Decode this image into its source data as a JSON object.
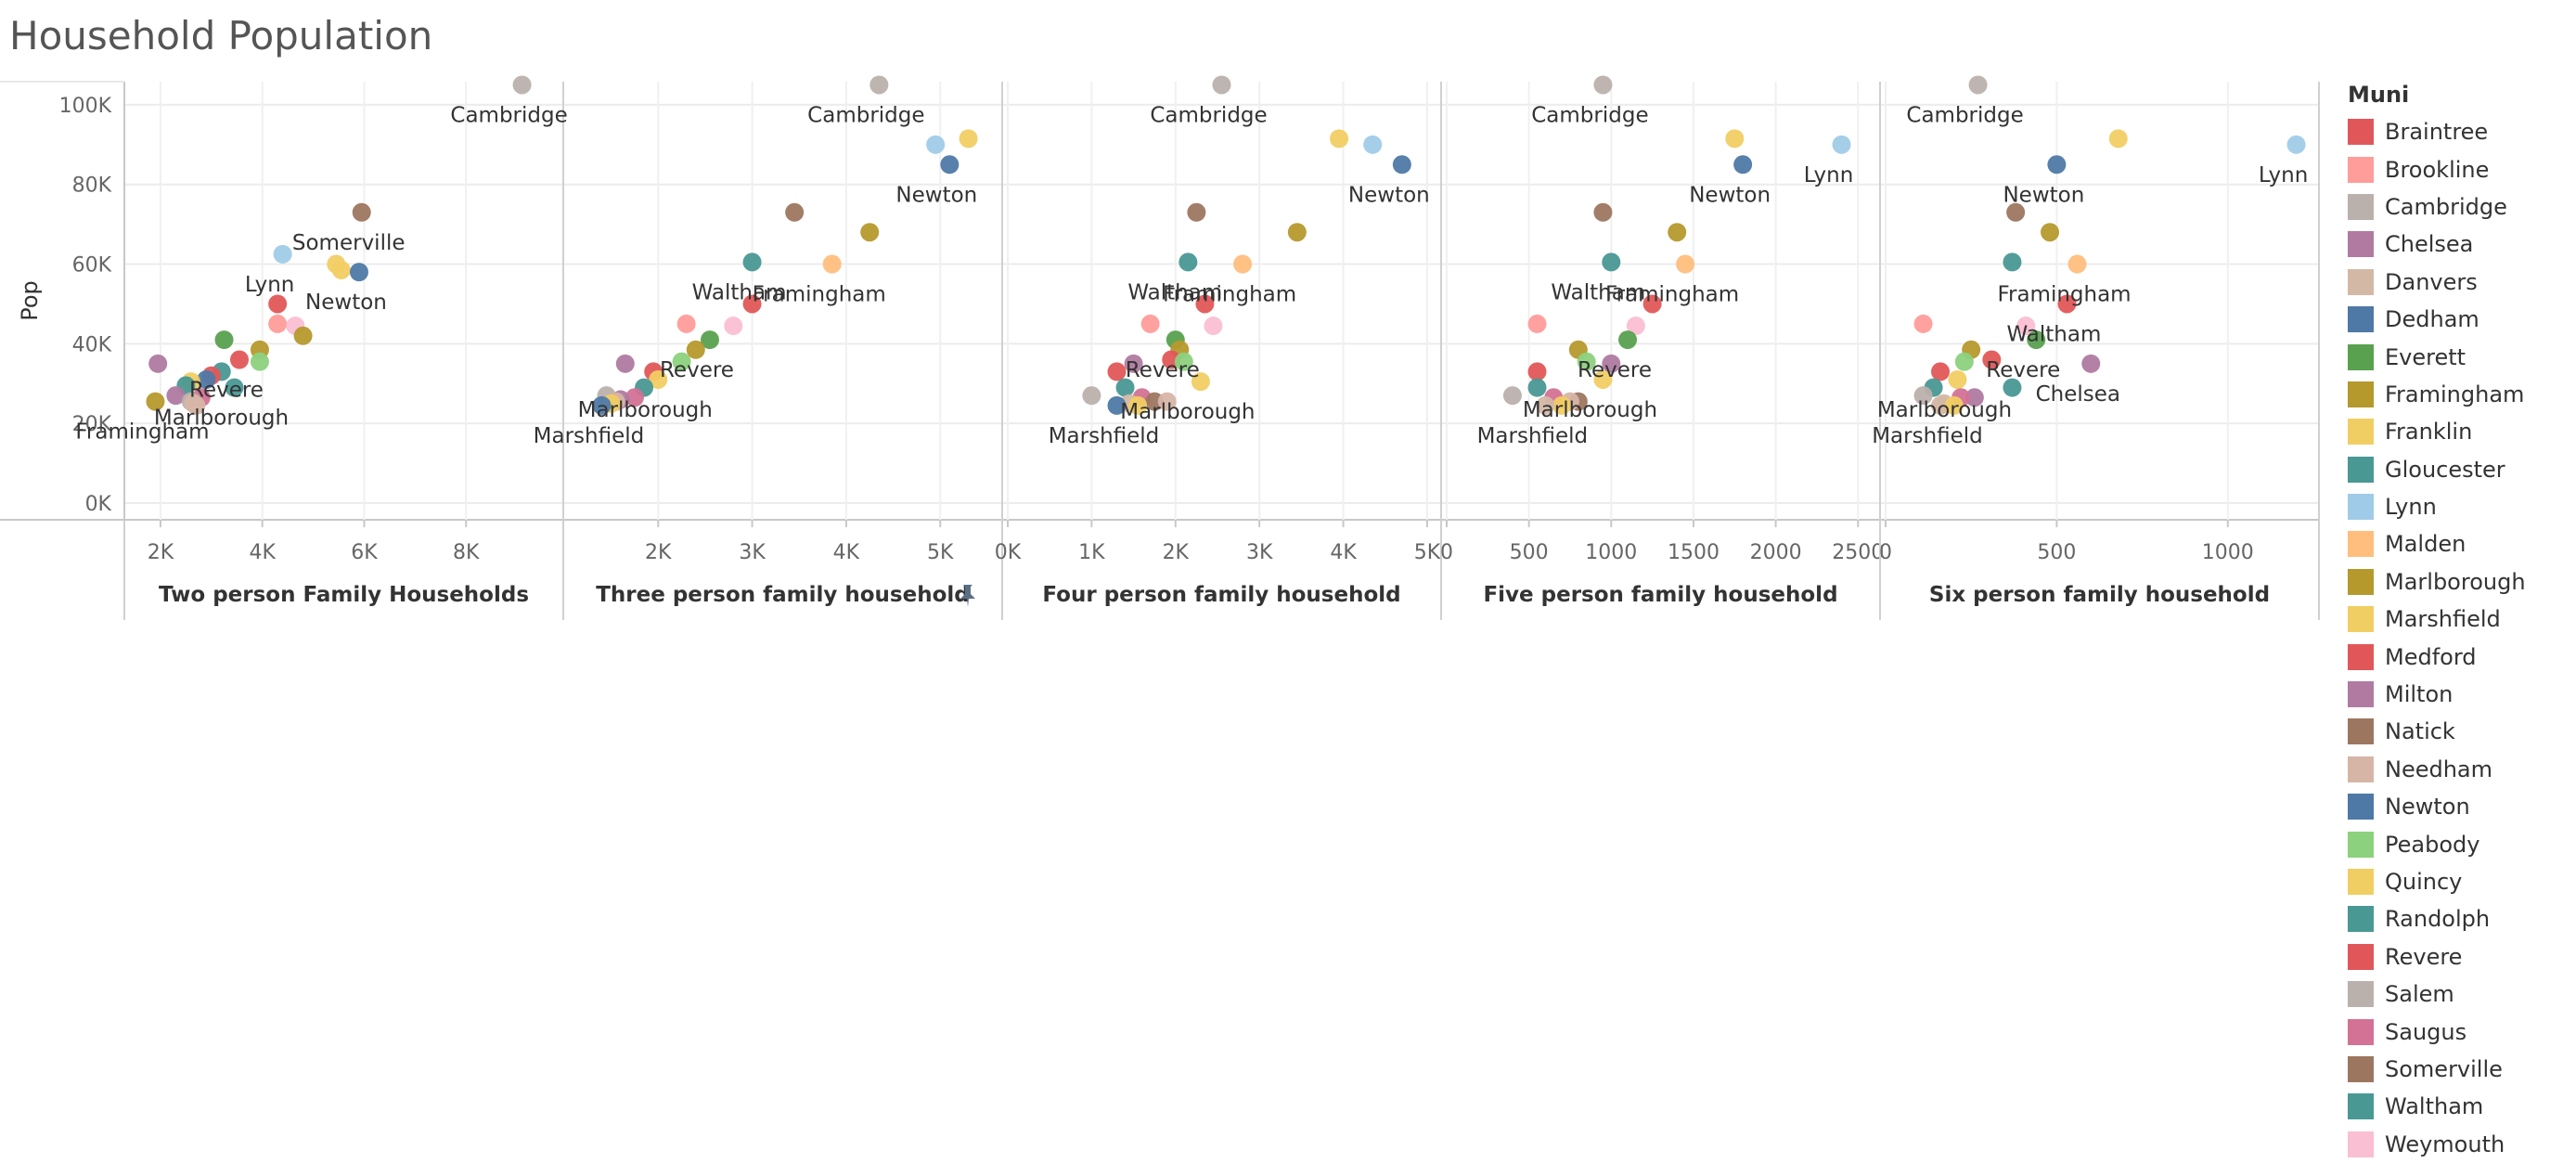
{
  "title": "Household Population",
  "chart_data": {
    "type": "scatter",
    "title": "Household Population",
    "ylabel": "Pop",
    "ylim": [
      0,
      110000
    ],
    "yticks": [
      0,
      20000,
      40000,
      60000,
      80000,
      100000
    ],
    "ytick_labels": [
      "0K",
      "20K",
      "40K",
      "60K",
      "80K",
      "100K"
    ],
    "grid": true,
    "legend": {
      "title": "Muni",
      "position": "right"
    },
    "colors": {
      "Braintree": "#e15759",
      "Brookline": "#ff9d9a",
      "Cambridge": "#bab0ac",
      "Chelsea": "#b07aa1",
      "Danvers": "#d4b8a6",
      "Dedham": "#4e79a7",
      "Everett": "#59a14f",
      "Framingham": "#b6992d",
      "Franklin": "#f1ce63",
      "Gloucester": "#499894",
      "Lynn": "#a0cbe8",
      "Malden": "#ffbe7d",
      "Marlborough": "#b6992d",
      "Marshfield": "#f1ce63",
      "Medford": "#e15759",
      "Milton": "#b07aa1",
      "Natick": "#9d7660",
      "Needham": "#d7b5a6",
      "Newton": "#4e79a7",
      "Peabody": "#8cd17d",
      "Quincy": "#f1ce63",
      "Randolph": "#499894",
      "Revere": "#e15759",
      "Salem": "#bab0ac",
      "Saugus": "#d37295",
      "Somerville": "#9d7660",
      "Waltham": "#499894",
      "Weymouth": "#fabfd2"
    },
    "munis": [
      "Braintree",
      "Brookline",
      "Cambridge",
      "Chelsea",
      "Danvers",
      "Dedham",
      "Everett",
      "Framingham",
      "Franklin",
      "Gloucester",
      "Lynn",
      "Malden",
      "Marlborough",
      "Marshfield",
      "Medford",
      "Milton",
      "Natick",
      "Needham",
      "Newton",
      "Peabody",
      "Quincy",
      "Randolph",
      "Revere",
      "Salem",
      "Saugus",
      "Somerville",
      "Waltham",
      "Weymouth"
    ],
    "panels": [
      {
        "xlabel": "Two person Family Households",
        "xlim": [
          1400,
          9800
        ],
        "xticks": [
          2000,
          4000,
          6000,
          8000
        ],
        "xtick_labels": [
          "2K",
          "4K",
          "6K",
          "8K"
        ],
        "points": [
          {
            "muni": "Cambridge",
            "x": 9100,
            "y": 105000,
            "label": "Cambridge"
          },
          {
            "muni": "Somerville",
            "x": 5950,
            "y": 73000,
            "label": "Somerville"
          },
          {
            "muni": "Lynn",
            "x": 4400,
            "y": 62500,
            "label": "Lynn"
          },
          {
            "muni": "Quincy",
            "x": 5450,
            "y": 60000
          },
          {
            "muni": "Franklin",
            "x": 5550,
            "y": 58500
          },
          {
            "muni": "Newton",
            "x": 5900,
            "y": 58000,
            "label": "Newton"
          },
          {
            "muni": "Braintree",
            "x": 4300,
            "y": 50000
          },
          {
            "muni": "Brookline",
            "x": 4300,
            "y": 45000
          },
          {
            "muni": "Weymouth",
            "x": 4650,
            "y": 44500
          },
          {
            "muni": "Framingham",
            "x": 4800,
            "y": 42000
          },
          {
            "muni": "Everett",
            "x": 3250,
            "y": 41000
          },
          {
            "muni": "Revere",
            "x": 3550,
            "y": 36000,
            "label": "Revere"
          },
          {
            "muni": "Marlborough",
            "x": 3950,
            "y": 38500
          },
          {
            "muni": "Peabody",
            "x": 3950,
            "y": 35500
          },
          {
            "muni": "Milton",
            "x": 1950,
            "y": 35000
          },
          {
            "muni": "Gloucester",
            "x": 3200,
            "y": 33000
          },
          {
            "muni": "Medford",
            "x": 3000,
            "y": 32000
          },
          {
            "muni": "Dedham",
            "x": 2900,
            "y": 31000
          },
          {
            "muni": "Marshfield",
            "x": 2600,
            "y": 30500
          },
          {
            "muni": "Waltham",
            "x": 2500,
            "y": 29500
          },
          {
            "muni": "Randolph",
            "x": 3450,
            "y": 29000,
            "label": "Marlborough"
          },
          {
            "muni": "Chelsea",
            "x": 2300,
            "y": 27000
          },
          {
            "muni": "Saugus",
            "x": 2800,
            "y": 26500
          },
          {
            "muni": "Framingham",
            "x": 1900,
            "y": 25500,
            "label": "Framingham"
          },
          {
            "muni": "Salem",
            "x": 2600,
            "y": 25500
          },
          {
            "muni": "Danvers",
            "x": 2650,
            "y": 25000
          },
          {
            "muni": "Needham",
            "x": 2700,
            "y": 24500
          }
        ]
      },
      {
        "xlabel": "Three person family household",
        "xlim": [
          1050,
          5600
        ],
        "xticks": [
          2000,
          3000,
          4000,
          5000
        ],
        "xtick_labels": [
          "2K",
          "3K",
          "4K",
          "5K"
        ],
        "points": [
          {
            "muni": "Cambridge",
            "x": 4350,
            "y": 105000,
            "label": "Cambridge"
          },
          {
            "muni": "Lynn",
            "x": 4950,
            "y": 90000
          },
          {
            "muni": "Franklin",
            "x": 5300,
            "y": 91500
          },
          {
            "muni": "Newton",
            "x": 5100,
            "y": 85000,
            "label": "Newton"
          },
          {
            "muni": "Somerville",
            "x": 3450,
            "y": 73000
          },
          {
            "muni": "Marlborough",
            "x": 4250,
            "y": 68000
          },
          {
            "muni": "Waltham",
            "x": 3000,
            "y": 60500,
            "label": "Waltham"
          },
          {
            "muni": "Malden",
            "x": 3850,
            "y": 60000,
            "label": "Framingham"
          },
          {
            "muni": "Revere",
            "x": 3000,
            "y": 50000
          },
          {
            "muni": "Brookline",
            "x": 2300,
            "y": 45000
          },
          {
            "muni": "Weymouth",
            "x": 2800,
            "y": 44500
          },
          {
            "muni": "Everett",
            "x": 2550,
            "y": 41000,
            "label": "Revere"
          },
          {
            "muni": "Framingham",
            "x": 2400,
            "y": 38500
          },
          {
            "muni": "Peabody",
            "x": 2250,
            "y": 35500
          },
          {
            "muni": "Milton",
            "x": 1650,
            "y": 35000
          },
          {
            "muni": "Medford",
            "x": 1950,
            "y": 33000
          },
          {
            "muni": "Marshfield",
            "x": 2000,
            "y": 31000,
            "label": "Marlborough"
          },
          {
            "muni": "Gloucester",
            "x": 1850,
            "y": 29000
          },
          {
            "muni": "Salem",
            "x": 1450,
            "y": 27000
          },
          {
            "muni": "Saugus",
            "x": 1750,
            "y": 26500
          },
          {
            "muni": "Chelsea",
            "x": 1600,
            "y": 26000
          },
          {
            "muni": "Needham",
            "x": 1550,
            "y": 25500
          },
          {
            "muni": "Franklin",
            "x": 1500,
            "y": 25000
          },
          {
            "muni": "Dedham",
            "x": 1400,
            "y": 24500,
            "label": "Marshfield"
          }
        ]
      },
      {
        "xlabel": "Four person family household",
        "xlim": [
          0,
          5100
        ],
        "xticks": [
          0,
          1000,
          2000,
          3000,
          4000,
          5000
        ],
        "xtick_labels": [
          "0K",
          "1K",
          "2K",
          "3K",
          "4K",
          "5K"
        ],
        "points": [
          {
            "muni": "Cambridge",
            "x": 2550,
            "y": 105000,
            "label": "Cambridge"
          },
          {
            "muni": "Franklin",
            "x": 3950,
            "y": 91500
          },
          {
            "muni": "Lynn",
            "x": 4350,
            "y": 90000
          },
          {
            "muni": "Newton",
            "x": 4700,
            "y": 85000,
            "label": "Newton"
          },
          {
            "muni": "Somerville",
            "x": 2250,
            "y": 73000
          },
          {
            "muni": "Marlborough",
            "x": 3450,
            "y": 68000
          },
          {
            "muni": "Waltham",
            "x": 2150,
            "y": 60500,
            "label": "Waltham"
          },
          {
            "muni": "Malden",
            "x": 2800,
            "y": 60000,
            "label": "Framingham"
          },
          {
            "muni": "Revere",
            "x": 2350,
            "y": 50000
          },
          {
            "muni": "Brookline",
            "x": 1700,
            "y": 45000
          },
          {
            "muni": "Weymouth",
            "x": 2450,
            "y": 44500
          },
          {
            "muni": "Everett",
            "x": 2000,
            "y": 41000,
            "label": "Revere"
          },
          {
            "muni": "Framingham",
            "x": 2050,
            "y": 38500
          },
          {
            "muni": "Medford",
            "x": 1950,
            "y": 36000
          },
          {
            "muni": "Peabody",
            "x": 2100,
            "y": 35500
          },
          {
            "muni": "Milton",
            "x": 1500,
            "y": 35000
          },
          {
            "muni": "Braintree",
            "x": 1300,
            "y": 33000
          },
          {
            "muni": "Franklin",
            "x": 2300,
            "y": 30500,
            "label": "Marlborough"
          },
          {
            "muni": "Gloucester",
            "x": 1400,
            "y": 29000
          },
          {
            "muni": "Salem",
            "x": 1000,
            "y": 27000
          },
          {
            "muni": "Saugus",
            "x": 1600,
            "y": 26500
          },
          {
            "muni": "Natick",
            "x": 1750,
            "y": 25500
          },
          {
            "muni": "Needham",
            "x": 1900,
            "y": 25500
          },
          {
            "muni": "Danvers",
            "x": 1450,
            "y": 25000
          },
          {
            "muni": "Dedham",
            "x": 1300,
            "y": 24500,
            "label": "Marshfield"
          },
          {
            "muni": "Quincy",
            "x": 1550,
            "y": 24500
          }
        ]
      },
      {
        "xlabel": "Five person family household",
        "xlim": [
          0,
          2600
        ],
        "xticks": [
          0,
          500,
          1000,
          1500,
          2000,
          2500
        ],
        "xtick_labels": [
          "0",
          "500",
          "1000",
          "1500",
          "2000",
          "2500"
        ],
        "points": [
          {
            "muni": "Cambridge",
            "x": 950,
            "y": 105000,
            "label": "Cambridge"
          },
          {
            "muni": "Franklin",
            "x": 1750,
            "y": 91500
          },
          {
            "muni": "Lynn",
            "x": 2400,
            "y": 90000,
            "label": "Lynn"
          },
          {
            "muni": "Newton",
            "x": 1800,
            "y": 85000,
            "label": "Newton"
          },
          {
            "muni": "Somerville",
            "x": 950,
            "y": 73000
          },
          {
            "muni": "Marlborough",
            "x": 1400,
            "y": 68000
          },
          {
            "muni": "Waltham",
            "x": 1000,
            "y": 60500,
            "label": "Waltham"
          },
          {
            "muni": "Malden",
            "x": 1450,
            "y": 60000,
            "label": "Framingham"
          },
          {
            "muni": "Revere",
            "x": 1250,
            "y": 50000
          },
          {
            "muni": "Brookline",
            "x": 550,
            "y": 45000
          },
          {
            "muni": "Weymouth",
            "x": 1150,
            "y": 44500
          },
          {
            "muni": "Everett",
            "x": 1100,
            "y": 41000,
            "label": "Revere"
          },
          {
            "muni": "Framingham",
            "x": 800,
            "y": 38500
          },
          {
            "muni": "Peabody",
            "x": 850,
            "y": 35500
          },
          {
            "muni": "Milton",
            "x": 1000,
            "y": 35000
          },
          {
            "muni": "Medford",
            "x": 550,
            "y": 33000
          },
          {
            "muni": "Marshfield",
            "x": 950,
            "y": 31000,
            "label": "Marlborough"
          },
          {
            "muni": "Gloucester",
            "x": 550,
            "y": 29000
          },
          {
            "muni": "Salem",
            "x": 400,
            "y": 27000
          },
          {
            "muni": "Saugus",
            "x": 650,
            "y": 26500
          },
          {
            "muni": "Natick",
            "x": 800,
            "y": 25500
          },
          {
            "muni": "Needham",
            "x": 750,
            "y": 25500
          },
          {
            "muni": "Quincy",
            "x": 700,
            "y": 24500
          },
          {
            "muni": "Danvers",
            "x": 600,
            "y": 24500,
            "label": "Marshfield"
          }
        ]
      },
      {
        "xlabel": "Six person family household",
        "xlim": [
          0,
          1250
        ],
        "xticks": [
          0,
          500,
          1000
        ],
        "xtick_labels": [
          "0",
          "500",
          "1000"
        ],
        "points": [
          {
            "muni": "Cambridge",
            "x": 270,
            "y": 105000,
            "label": "Cambridge"
          },
          {
            "muni": "Franklin",
            "x": 680,
            "y": 91500
          },
          {
            "muni": "Lynn",
            "x": 1200,
            "y": 90000,
            "label": "Lynn"
          },
          {
            "muni": "Newton",
            "x": 500,
            "y": 85000,
            "label": "Newton"
          },
          {
            "muni": "Somerville",
            "x": 380,
            "y": 73000
          },
          {
            "muni": "Marlborough",
            "x": 480,
            "y": 68000
          },
          {
            "muni": "Waltham",
            "x": 370,
            "y": 60500
          },
          {
            "muni": "Malden",
            "x": 560,
            "y": 60000,
            "label": "Framingham"
          },
          {
            "muni": "Revere",
            "x": 530,
            "y": 50000,
            "label": "Waltham"
          },
          {
            "muni": "Brookline",
            "x": 110,
            "y": 45000
          },
          {
            "muni": "Weymouth",
            "x": 410,
            "y": 44500
          },
          {
            "muni": "Everett",
            "x": 440,
            "y": 41000,
            "label": "Revere"
          },
          {
            "muni": "Framingham",
            "x": 250,
            "y": 38500
          },
          {
            "muni": "Peabody",
            "x": 230,
            "y": 35500
          },
          {
            "muni": "Medford",
            "x": 310,
            "y": 36000
          },
          {
            "muni": "Chelsea",
            "x": 600,
            "y": 35000,
            "label": "Chelsea"
          },
          {
            "muni": "Braintree",
            "x": 160,
            "y": 33000
          },
          {
            "muni": "Marshfield",
            "x": 210,
            "y": 31000,
            "label": "Marlborough"
          },
          {
            "muni": "Gloucester",
            "x": 140,
            "y": 29000
          },
          {
            "muni": "Randolph",
            "x": 370,
            "y": 29000
          },
          {
            "muni": "Salem",
            "x": 110,
            "y": 27000
          },
          {
            "muni": "Milton",
            "x": 260,
            "y": 26500
          },
          {
            "muni": "Saugus",
            "x": 220,
            "y": 26500
          },
          {
            "muni": "Needham",
            "x": 170,
            "y": 25000
          },
          {
            "muni": "Danvers",
            "x": 160,
            "y": 24500,
            "label": "Marshfield"
          },
          {
            "muni": "Quincy",
            "x": 200,
            "y": 24500
          }
        ]
      }
    ]
  }
}
